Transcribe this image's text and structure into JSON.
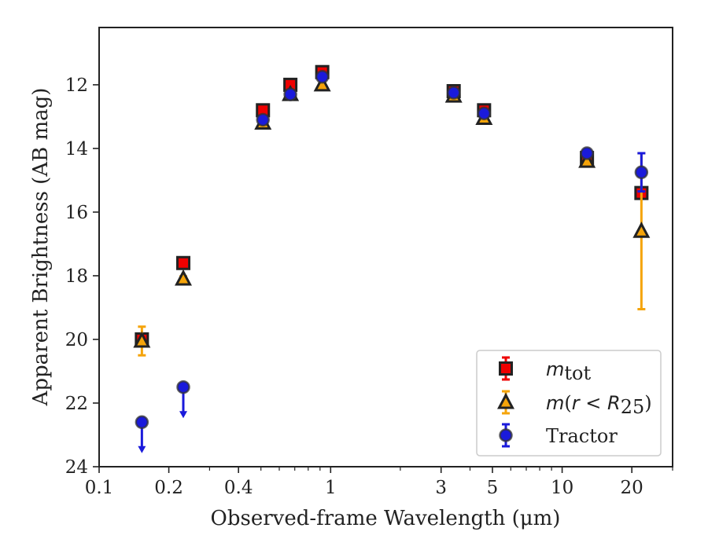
{
  "chart_data": {
    "type": "scatter",
    "xlabel": "Observed-frame Wavelength (μm)",
    "ylabel": "Apparent Brightness (AB mag)",
    "x_scale": "log",
    "y_inverted": true,
    "xlim": [
      0.1,
      30
    ],
    "ylim": [
      24,
      10.2
    ],
    "x_ticks": [
      0.1,
      0.2,
      0.4,
      1,
      3,
      5,
      10,
      20
    ],
    "x_tick_labels": [
      "0.1",
      "0.2",
      "0.4",
      "1",
      "3",
      "5",
      "10",
      "20"
    ],
    "y_ticks": [
      12,
      14,
      16,
      18,
      20,
      22,
      24
    ],
    "y_tick_labels": [
      "12",
      "14",
      "16",
      "18",
      "20",
      "22",
      "24"
    ],
    "grid": false,
    "legend_position": "bottom-right",
    "legend": [
      {
        "label_main": "m",
        "label_sub": "tot",
        "label_text": "m_tot"
      },
      {
        "label_text": "m(r < R25)"
      },
      {
        "label_text": "Tractor"
      }
    ],
    "colors": {
      "m_tot": "#ee0000",
      "m_r25": "#f5a40a",
      "tractor": "#1a1adb",
      "edge": "#222222"
    },
    "series": [
      {
        "key": "m_tot",
        "marker": "square",
        "points": [
          {
            "x": 0.153,
            "y": 20.0,
            "yerr": 0.1
          },
          {
            "x": 0.231,
            "y": 17.6,
            "yerr": 0.1
          },
          {
            "x": 0.51,
            "y": 12.8,
            "yerr": 0.08
          },
          {
            "x": 0.67,
            "y": 12.0,
            "yerr": 0.08
          },
          {
            "x": 0.92,
            "y": 11.6,
            "yerr": 0.08
          },
          {
            "x": 3.4,
            "y": 12.2,
            "yerr": 0.08
          },
          {
            "x": 4.6,
            "y": 12.8,
            "yerr": 0.08
          },
          {
            "x": 12.8,
            "y": 14.3,
            "yerr": 0.08
          },
          {
            "x": 22.0,
            "y": 15.4,
            "yerr": 0.1
          }
        ]
      },
      {
        "key": "m_r25",
        "marker": "triangle",
        "points": [
          {
            "x": 0.153,
            "y": 20.05,
            "yerr": 0.45
          },
          {
            "x": 0.231,
            "y": 18.1,
            "yerr": 0.08
          },
          {
            "x": 0.51,
            "y": 13.2,
            "yerr": 0.05
          },
          {
            "x": 0.67,
            "y": 12.3,
            "yerr": 0.05
          },
          {
            "x": 0.92,
            "y": 12.0,
            "yerr": 0.05
          },
          {
            "x": 3.4,
            "y": 12.35,
            "yerr": 0.05
          },
          {
            "x": 4.6,
            "y": 13.05,
            "yerr": 0.05
          },
          {
            "x": 12.8,
            "y": 14.4,
            "yerr": 0.05
          },
          {
            "x": 22.0,
            "y": 16.6,
            "yerr_low": 2.45,
            "yerr_high": 2.45
          }
        ]
      },
      {
        "key": "tractor",
        "marker": "circle",
        "points": [
          {
            "x": 0.153,
            "y": 22.6,
            "upper_limit": true
          },
          {
            "x": 0.231,
            "y": 21.5,
            "upper_limit": true
          },
          {
            "x": 0.51,
            "y": 13.1,
            "yerr": 0.05
          },
          {
            "x": 0.67,
            "y": 12.3,
            "yerr": 0.05
          },
          {
            "x": 0.92,
            "y": 11.75,
            "yerr": 0.05
          },
          {
            "x": 3.4,
            "y": 12.25,
            "yerr": 0.05
          },
          {
            "x": 4.6,
            "y": 12.9,
            "yerr": 0.05
          },
          {
            "x": 12.8,
            "y": 14.15,
            "yerr": 0.05
          },
          {
            "x": 22.0,
            "y": 14.75,
            "yerr": 0.6
          }
        ]
      }
    ]
  }
}
